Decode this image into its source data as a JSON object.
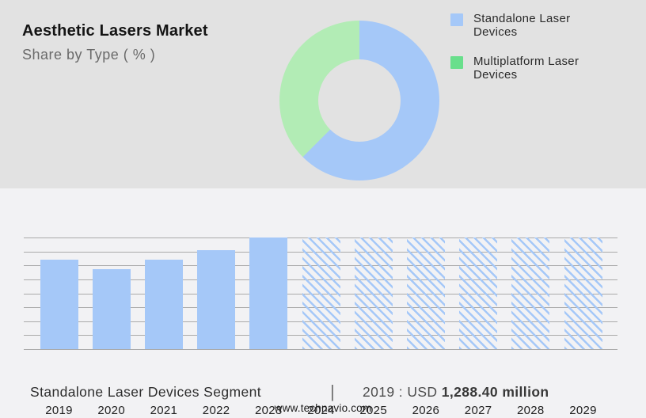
{
  "page": {
    "background_top": "#e2e2e2",
    "background_bottom": "#f2f2f4"
  },
  "header": {
    "title": "Aesthetic Lasers Market",
    "subtitle": "Share by Type ( % )"
  },
  "legend": {
    "items": [
      {
        "label": "Standalone Laser Devices",
        "color": "#a5c8f8"
      },
      {
        "label": "Multiplatform Laser Devices",
        "color": "#69df8c"
      }
    ]
  },
  "chart_data": [
    {
      "type": "pie",
      "donut": true,
      "title": "Aesthetic Lasers Market - Share by Type ( % )",
      "labels": [
        "Standalone Laser Devices",
        "Multiplatform Laser Devices"
      ],
      "values": [
        62.5,
        37.5
      ],
      "colors": [
        "#a5c8f8",
        "#b2ecb5"
      ],
      "start_angle_deg": 0,
      "legend_position": "right"
    },
    {
      "type": "bar",
      "categories": [
        "2019",
        "2020",
        "2021",
        "2022",
        "2023",
        "2024",
        "2025",
        "2026",
        "2027",
        "2028",
        "2029"
      ],
      "values": [
        1288.4,
        1155,
        1295,
        1430,
        1612,
        null,
        null,
        null,
        null,
        null,
        null
      ],
      "unit": "USD million",
      "known_value_label": "2019 : USD 1,288.40 million",
      "forecast_from_index": 5,
      "forecast_style": "hatched",
      "bar_color": "#a5c8f8",
      "ylim": [
        0,
        1612
      ],
      "gridlines": 9,
      "grid_on": true,
      "xlabel": "",
      "ylabel": ""
    }
  ],
  "footer": {
    "segment_label": "Standalone Laser Devices Segment",
    "separator": "|",
    "value_prefix": "2019 : USD",
    "value_bold": "1,288.40 million",
    "website": "www.technavio.com"
  }
}
